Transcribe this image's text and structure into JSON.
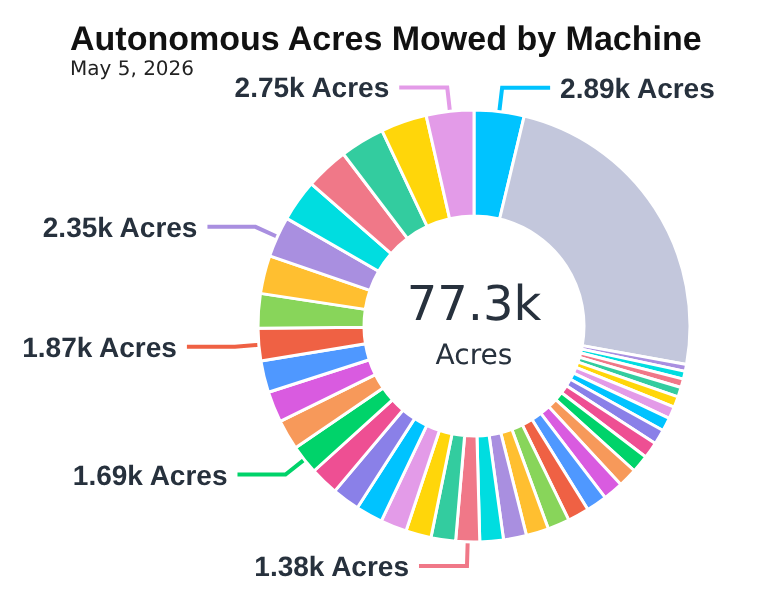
{
  "chart_data": {
    "type": "donut",
    "title": "Autonomous Acres Mowed by Machine",
    "subtitle": "May 5, 2026",
    "annotations": [
      "77.3k",
      "Acres"
    ],
    "categories": [
      null,
      null,
      null,
      null,
      null,
      null,
      null,
      null,
      null,
      null,
      null,
      null,
      null,
      null,
      null,
      null,
      null,
      null,
      null,
      null,
      null,
      null,
      null,
      null,
      null,
      null,
      null,
      null,
      null,
      null,
      null,
      null,
      null,
      null,
      null,
      null,
      null,
      null,
      null,
      null
    ],
    "values": [
      2890,
      18640,
      400,
      450,
      500,
      560,
      620,
      700,
      780,
      860,
      940,
      1020,
      1100,
      1160,
      1200,
      1240,
      1270,
      1300,
      1330,
      1360,
      1380,
      1420,
      1470,
      1520,
      1560,
      1600,
      1650,
      1690,
      1740,
      1790,
      1830,
      1870,
      2000,
      2200,
      2350,
      2420,
      2500,
      2580,
      2660,
      2750
    ],
    "value_labels": [
      "2.89k Acres",
      null,
      null,
      null,
      null,
      null,
      null,
      null,
      null,
      null,
      null,
      null,
      null,
      null,
      null,
      null,
      null,
      null,
      null,
      null,
      "1.38k Acres",
      null,
      null,
      null,
      null,
      null,
      null,
      "1.69k Acres",
      null,
      null,
      null,
      "1.87k Acres",
      null,
      null,
      "2.35k Acres",
      null,
      null,
      null,
      null,
      "2.75k Acres"
    ],
    "colors": [
      "#00c3ff",
      "#c3c7dc",
      "#a98fe0",
      "#00dde0",
      "#f07888",
      "#33cc9f",
      "#ffd60a",
      "#e39be8",
      "#00c3ff",
      "#8a80e8",
      "#ee4f93",
      "#00d36a",
      "#f7995a",
      "#d95be0",
      "#4f98ff",
      "#ef6144",
      "#88d55a",
      "#ffbf30",
      "#a98fe0",
      "#00dde0",
      "#f07888",
      "#33cc9f",
      "#ffd60a",
      "#e39be8",
      "#00c3ff",
      "#8a80e8",
      "#ee4f93",
      "#00d36a",
      "#f7995a",
      "#d95be0",
      "#4f98ff",
      "#ef6144",
      "#88d55a",
      "#ffbf30",
      "#a98fe0",
      "#00dde0",
      "#f07888",
      "#33cc9f",
      "#ffd60a",
      "#e39be8"
    ]
  }
}
